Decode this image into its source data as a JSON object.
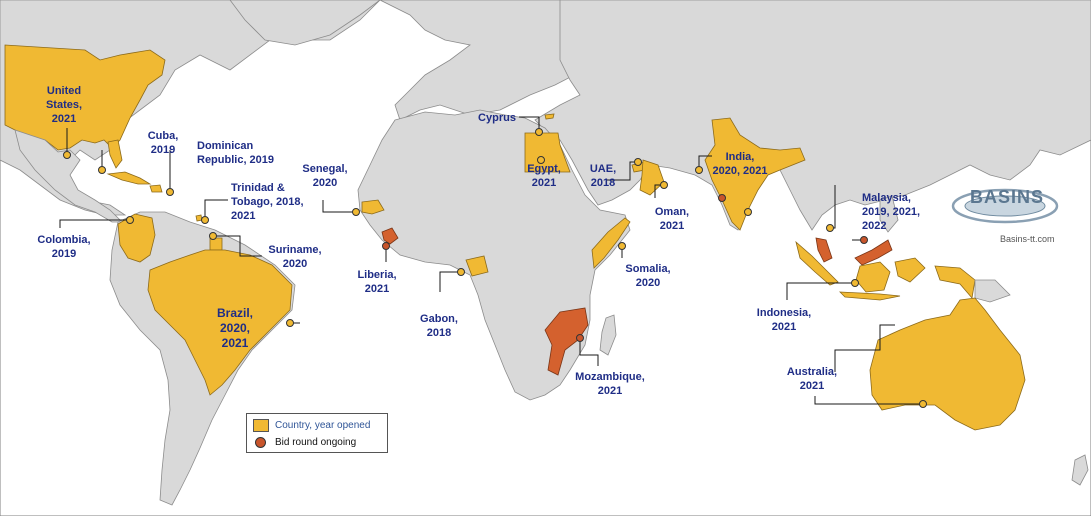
{
  "legend": {
    "opened_label": "Country, year opened",
    "bid_label": "Bid round ongoing"
  },
  "logo": {
    "word": "BASINS",
    "url": "Basins-tt.com"
  },
  "colors": {
    "opened": "#f0b933",
    "bid_round": "#d4612e",
    "land": "#d9d9d9",
    "ocean": "#ffffff",
    "label_text": "#1f2d86"
  },
  "labels": {
    "usa": "United\nStates,\n2021",
    "cuba": "Cuba,\n2019",
    "dominican": "Dominican\nRepublic, 2019",
    "trinidad": "Trinidad &\nTobago, 2018,\n2021",
    "colombia": "Colombia,\n2019",
    "suriname": "Suriname,\n2020",
    "brazil": "Brazil,\n2020,\n2021",
    "senegal": "Senegal,\n2020",
    "liberia": "Liberia,\n2021",
    "gabon": "Gabon,\n2018",
    "cyprus": "Cyprus",
    "egypt": "Egypt,\n2021",
    "uae": "UAE,\n2018",
    "oman": "Oman,\n2021",
    "somalia": "Somalia,\n2020",
    "mozambique": "Mozambique,\n2021",
    "india": "India,\n2020, 2021",
    "malaysia": "Malaysia,\n2019, 2021,\n2022",
    "indonesia": "Indonesia,\n2021",
    "australia": "Australia,\n2021"
  }
}
